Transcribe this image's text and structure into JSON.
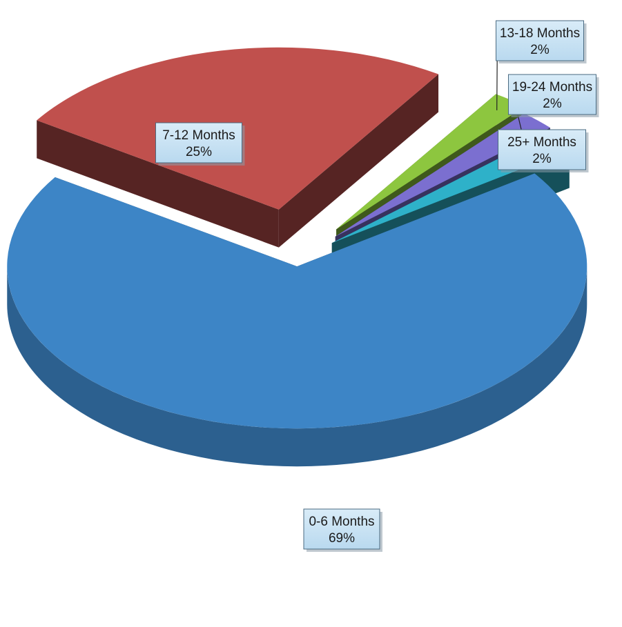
{
  "chart_data": {
    "type": "pie",
    "style": "3d-exploded",
    "categories": [
      "0-6 Months",
      "7-12 Months",
      "13-18 Months",
      "19-24 Months",
      "25+ Months"
    ],
    "values": [
      69,
      25,
      2,
      2,
      2
    ],
    "value_labels": [
      "69%",
      "25%",
      "2%",
      "2%",
      "2%"
    ],
    "colors": [
      "#3d85c6",
      "#c0504d",
      "#8dc63f",
      "#7b6fd0",
      "#2eb1c9"
    ],
    "title": "",
    "legend": "none",
    "data_labels": "category and percentage, with leader lines for small slices"
  }
}
